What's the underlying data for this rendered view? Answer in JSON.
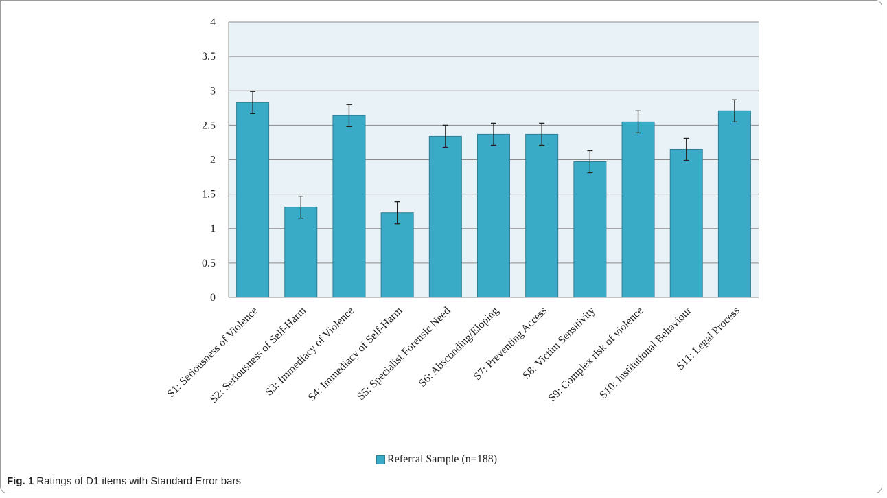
{
  "chart_data": {
    "type": "bar",
    "title": "",
    "xlabel": "",
    "ylabel": "",
    "ylim": [
      0,
      4
    ],
    "yticks": [
      "0",
      "0.5",
      "1",
      "1.5",
      "2",
      "2.5",
      "3",
      "3.5",
      "4"
    ],
    "grid": true,
    "legend_position": "bottom",
    "categories": [
      "S1: Seriousness of Violence",
      "S2: Seriousness of Self-Harm",
      "S3: Immediacy of Violence",
      "S4: Immediacy of Self-Harm",
      "S5: Specialist Forensic Need",
      "S6: Absconding/Eloping",
      "S7: Preventing Access",
      "S8: Victim Sensitivity",
      "S9: Complex risk of violence",
      "S10: Institutional Behaviour",
      "S11: Legal Process"
    ],
    "series": [
      {
        "name": "Referral Sample (n=188)",
        "values": [
          2.83,
          1.31,
          2.64,
          1.23,
          2.34,
          2.37,
          2.37,
          1.97,
          2.55,
          2.15,
          2.71
        ],
        "errors": [
          0.16,
          0.16,
          0.16,
          0.16,
          0.16,
          0.16,
          0.16,
          0.16,
          0.16,
          0.16,
          0.16
        ],
        "color": "#3aabc6"
      }
    ]
  },
  "legend": {
    "label": "Referral Sample (n=188)"
  },
  "caption": {
    "label": "Fig. 1",
    "text": " Ratings of D1 items with Standard Error bars"
  }
}
